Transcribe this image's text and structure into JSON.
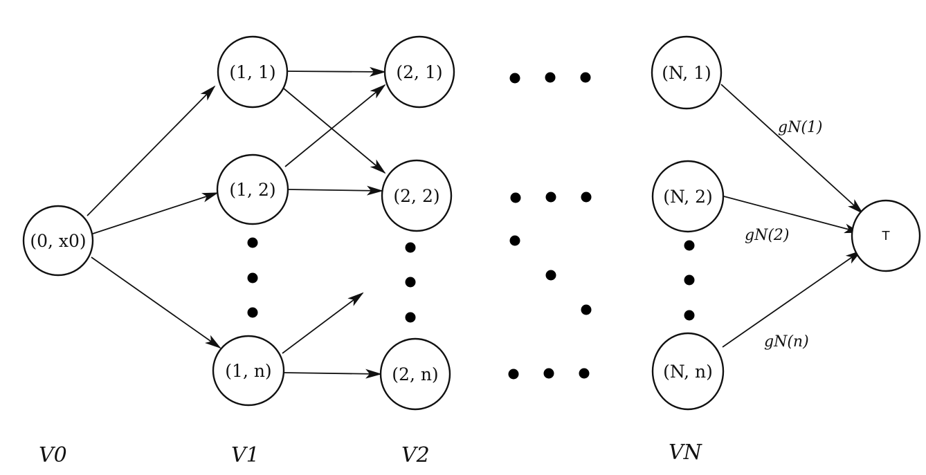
{
  "nodes": {
    "n0": "(0, x0)",
    "n11": "(1, 1)",
    "n12": "(1, 2)",
    "n1n": "(1, n)",
    "n21": "(2, 1)",
    "n22": "(2, 2)",
    "n2n": "(2, n)",
    "nN1": "(N, 1)",
    "nN2": "(N, 2)",
    "nNn": "(N, n)",
    "terminal": "T"
  },
  "edge_labels": {
    "gN1": "gN(1)",
    "gN2": "gN(2)",
    "gNn": "gN(n)"
  },
  "layers": {
    "v0": "V0",
    "v1": "V1",
    "v2": "V2",
    "vN": "VN"
  }
}
